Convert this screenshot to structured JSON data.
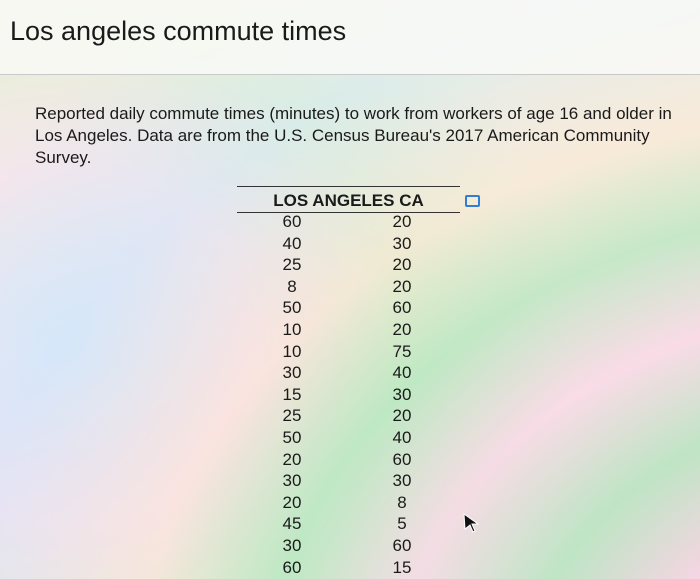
{
  "title": "Los angeles commute times",
  "description": "Reported daily commute times (minutes) to work from workers of age 16 and older in Los Angeles. Data are from the U.S. Census Bureau's 2017 American Community Survey.",
  "table": {
    "header": "LOS ANGELES CA",
    "rows": [
      [
        60,
        20
      ],
      [
        40,
        30
      ],
      [
        25,
        20
      ],
      [
        8,
        20
      ],
      [
        50,
        60
      ],
      [
        10,
        20
      ],
      [
        10,
        75
      ],
      [
        30,
        40
      ],
      [
        15,
        30
      ],
      [
        25,
        20
      ],
      [
        50,
        40
      ],
      [
        20,
        60
      ],
      [
        30,
        30
      ],
      [
        20,
        8
      ],
      [
        45,
        5
      ],
      [
        30,
        60
      ],
      [
        60,
        15
      ]
    ]
  }
}
